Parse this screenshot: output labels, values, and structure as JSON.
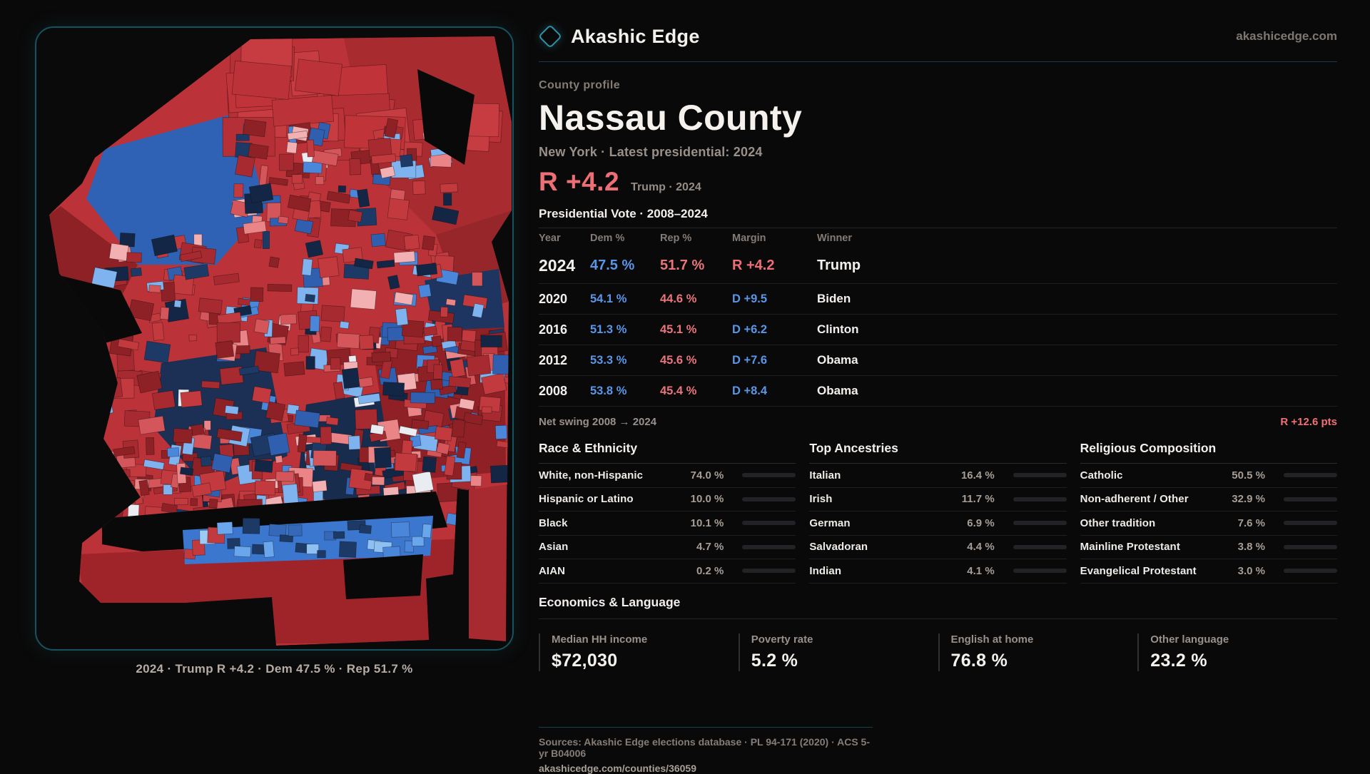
{
  "site": {
    "brand": "Akashic Edge",
    "domain": "akashicedge.com"
  },
  "page": {
    "eyebrow": "County profile",
    "title": "Nassau County",
    "subtitle": "New York · Latest presidential: 2024"
  },
  "headline": {
    "margin": "R +4.2",
    "context": "Trump · 2024"
  },
  "theme": {
    "dem_blue": "#5a96e8",
    "rep_red": "#ee6e76",
    "accent_teal": "#2f93a8",
    "background": "#0a0909"
  },
  "table": {
    "title": "Presidential Vote · 2008–2024",
    "columns": [
      "Year",
      "Dem %",
      "Rep %",
      "Margin",
      "Winner"
    ],
    "rows": [
      {
        "year": "2024",
        "dem": "47.5 %",
        "rep": "51.7 %",
        "margin": "R +4.2",
        "margin_party": "R",
        "winner": "Trump"
      },
      {
        "year": "2020",
        "dem": "54.1 %",
        "rep": "44.6 %",
        "margin": "D +9.5",
        "margin_party": "D",
        "winner": "Biden"
      },
      {
        "year": "2016",
        "dem": "51.3 %",
        "rep": "45.1 %",
        "margin": "D +6.2",
        "margin_party": "D",
        "winner": "Clinton"
      },
      {
        "year": "2012",
        "dem": "53.3 %",
        "rep": "45.6 %",
        "margin": "D +7.6",
        "margin_party": "D",
        "winner": "Obama"
      },
      {
        "year": "2008",
        "dem": "53.8 %",
        "rep": "45.4 %",
        "margin": "D +8.4",
        "margin_party": "D",
        "winner": "Obama"
      }
    ]
  },
  "net_swing": {
    "label": "Net swing 2008 → 2024",
    "value": "R +12.6 pts"
  },
  "chart_data": [
    {
      "type": "bar",
      "title": "Race & Ethnicity",
      "categories": [
        "White, non-Hispanic",
        "Hispanic or Latino",
        "Black",
        "Asian",
        "AIAN"
      ],
      "values": [
        74.0,
        10.0,
        10.1,
        4.7,
        0.2
      ],
      "unit": "%"
    },
    {
      "type": "bar",
      "title": "Top Ancestries",
      "categories": [
        "Italian",
        "Irish",
        "German",
        "Salvadoran",
        "Indian"
      ],
      "values": [
        16.4,
        11.7,
        6.9,
        4.4,
        4.1
      ],
      "unit": "%"
    },
    {
      "type": "bar",
      "title": "Religious Composition",
      "categories": [
        "Catholic",
        "Non-adherent / Other",
        "Other tradition",
        "Mainline Protestant",
        "Evangelical Protestant"
      ],
      "values": [
        50.5,
        32.9,
        7.6,
        3.8,
        3.0
      ],
      "unit": "%"
    }
  ],
  "demographics": {
    "sections": [
      {
        "title": "Race & Ethnicity",
        "rows": [
          {
            "label": "White, non-Hispanic",
            "value": "74.0 %",
            "pct": 74.0,
            "color": "#8ca6c6"
          },
          {
            "label": "Hispanic or Latino",
            "value": "10.0 %",
            "pct": 10.0,
            "color": "#e2a23c"
          },
          {
            "label": "Black",
            "value": "10.1 %",
            "pct": 10.1,
            "color": "#9c8bdf"
          },
          {
            "label": "Asian",
            "value": "4.7 %",
            "pct": 4.7,
            "color": "#2fbf80"
          },
          {
            "label": "AIAN",
            "value": "0.2 %",
            "pct": 0.2,
            "color": "#45454b"
          }
        ]
      },
      {
        "title": "Top Ancestries",
        "rows": [
          {
            "label": "Italian",
            "value": "16.4 %",
            "pct": 16.4,
            "color": "#8ca6c6"
          },
          {
            "label": "Irish",
            "value": "11.7 %",
            "pct": 11.7,
            "color": "#8ca6c6"
          },
          {
            "label": "German",
            "value": "6.9 %",
            "pct": 6.9,
            "color": "#8ca6c6"
          },
          {
            "label": "Salvadoran",
            "value": "4.4 %",
            "pct": 4.4,
            "color": "#e2a23c"
          },
          {
            "label": "Indian",
            "value": "4.1 %",
            "pct": 4.1,
            "color": "#2fbf80"
          }
        ]
      },
      {
        "title": "Religious Composition",
        "rows": [
          {
            "label": "Catholic",
            "value": "50.5 %",
            "pct": 50.5,
            "color": "#d9b13c"
          },
          {
            "label": "Non-adherent / Other",
            "value": "32.9 %",
            "pct": 32.9,
            "color": "#6f7b8c"
          },
          {
            "label": "Other tradition",
            "value": "7.6 %",
            "pct": 7.6,
            "color": "#8d939c"
          },
          {
            "label": "Mainline Protestant",
            "value": "3.8 %",
            "pct": 3.8,
            "color": "#3e7ee2"
          },
          {
            "label": "Evangelical Protestant",
            "value": "3.0 %",
            "pct": 3.0,
            "color": "#de5a5a"
          }
        ]
      }
    ]
  },
  "economics": {
    "title": "Economics & Language",
    "stats": [
      {
        "label": "Median HH income",
        "value": "$72,030"
      },
      {
        "label": "Poverty rate",
        "value": "5.2 %"
      },
      {
        "label": "English at home",
        "value": "76.8 %"
      },
      {
        "label": "Other language",
        "value": "23.2 %"
      }
    ]
  },
  "map": {
    "caption": "2024 · Trump R +4.2 · Dem 47.5 % · Rep 51.7 %"
  },
  "footer": {
    "sources": "Sources: Akashic Edge elections database · PL 94-171 (2020) · ACS 5-yr B04006",
    "permalink": "akashicedge.com/counties/36059"
  }
}
